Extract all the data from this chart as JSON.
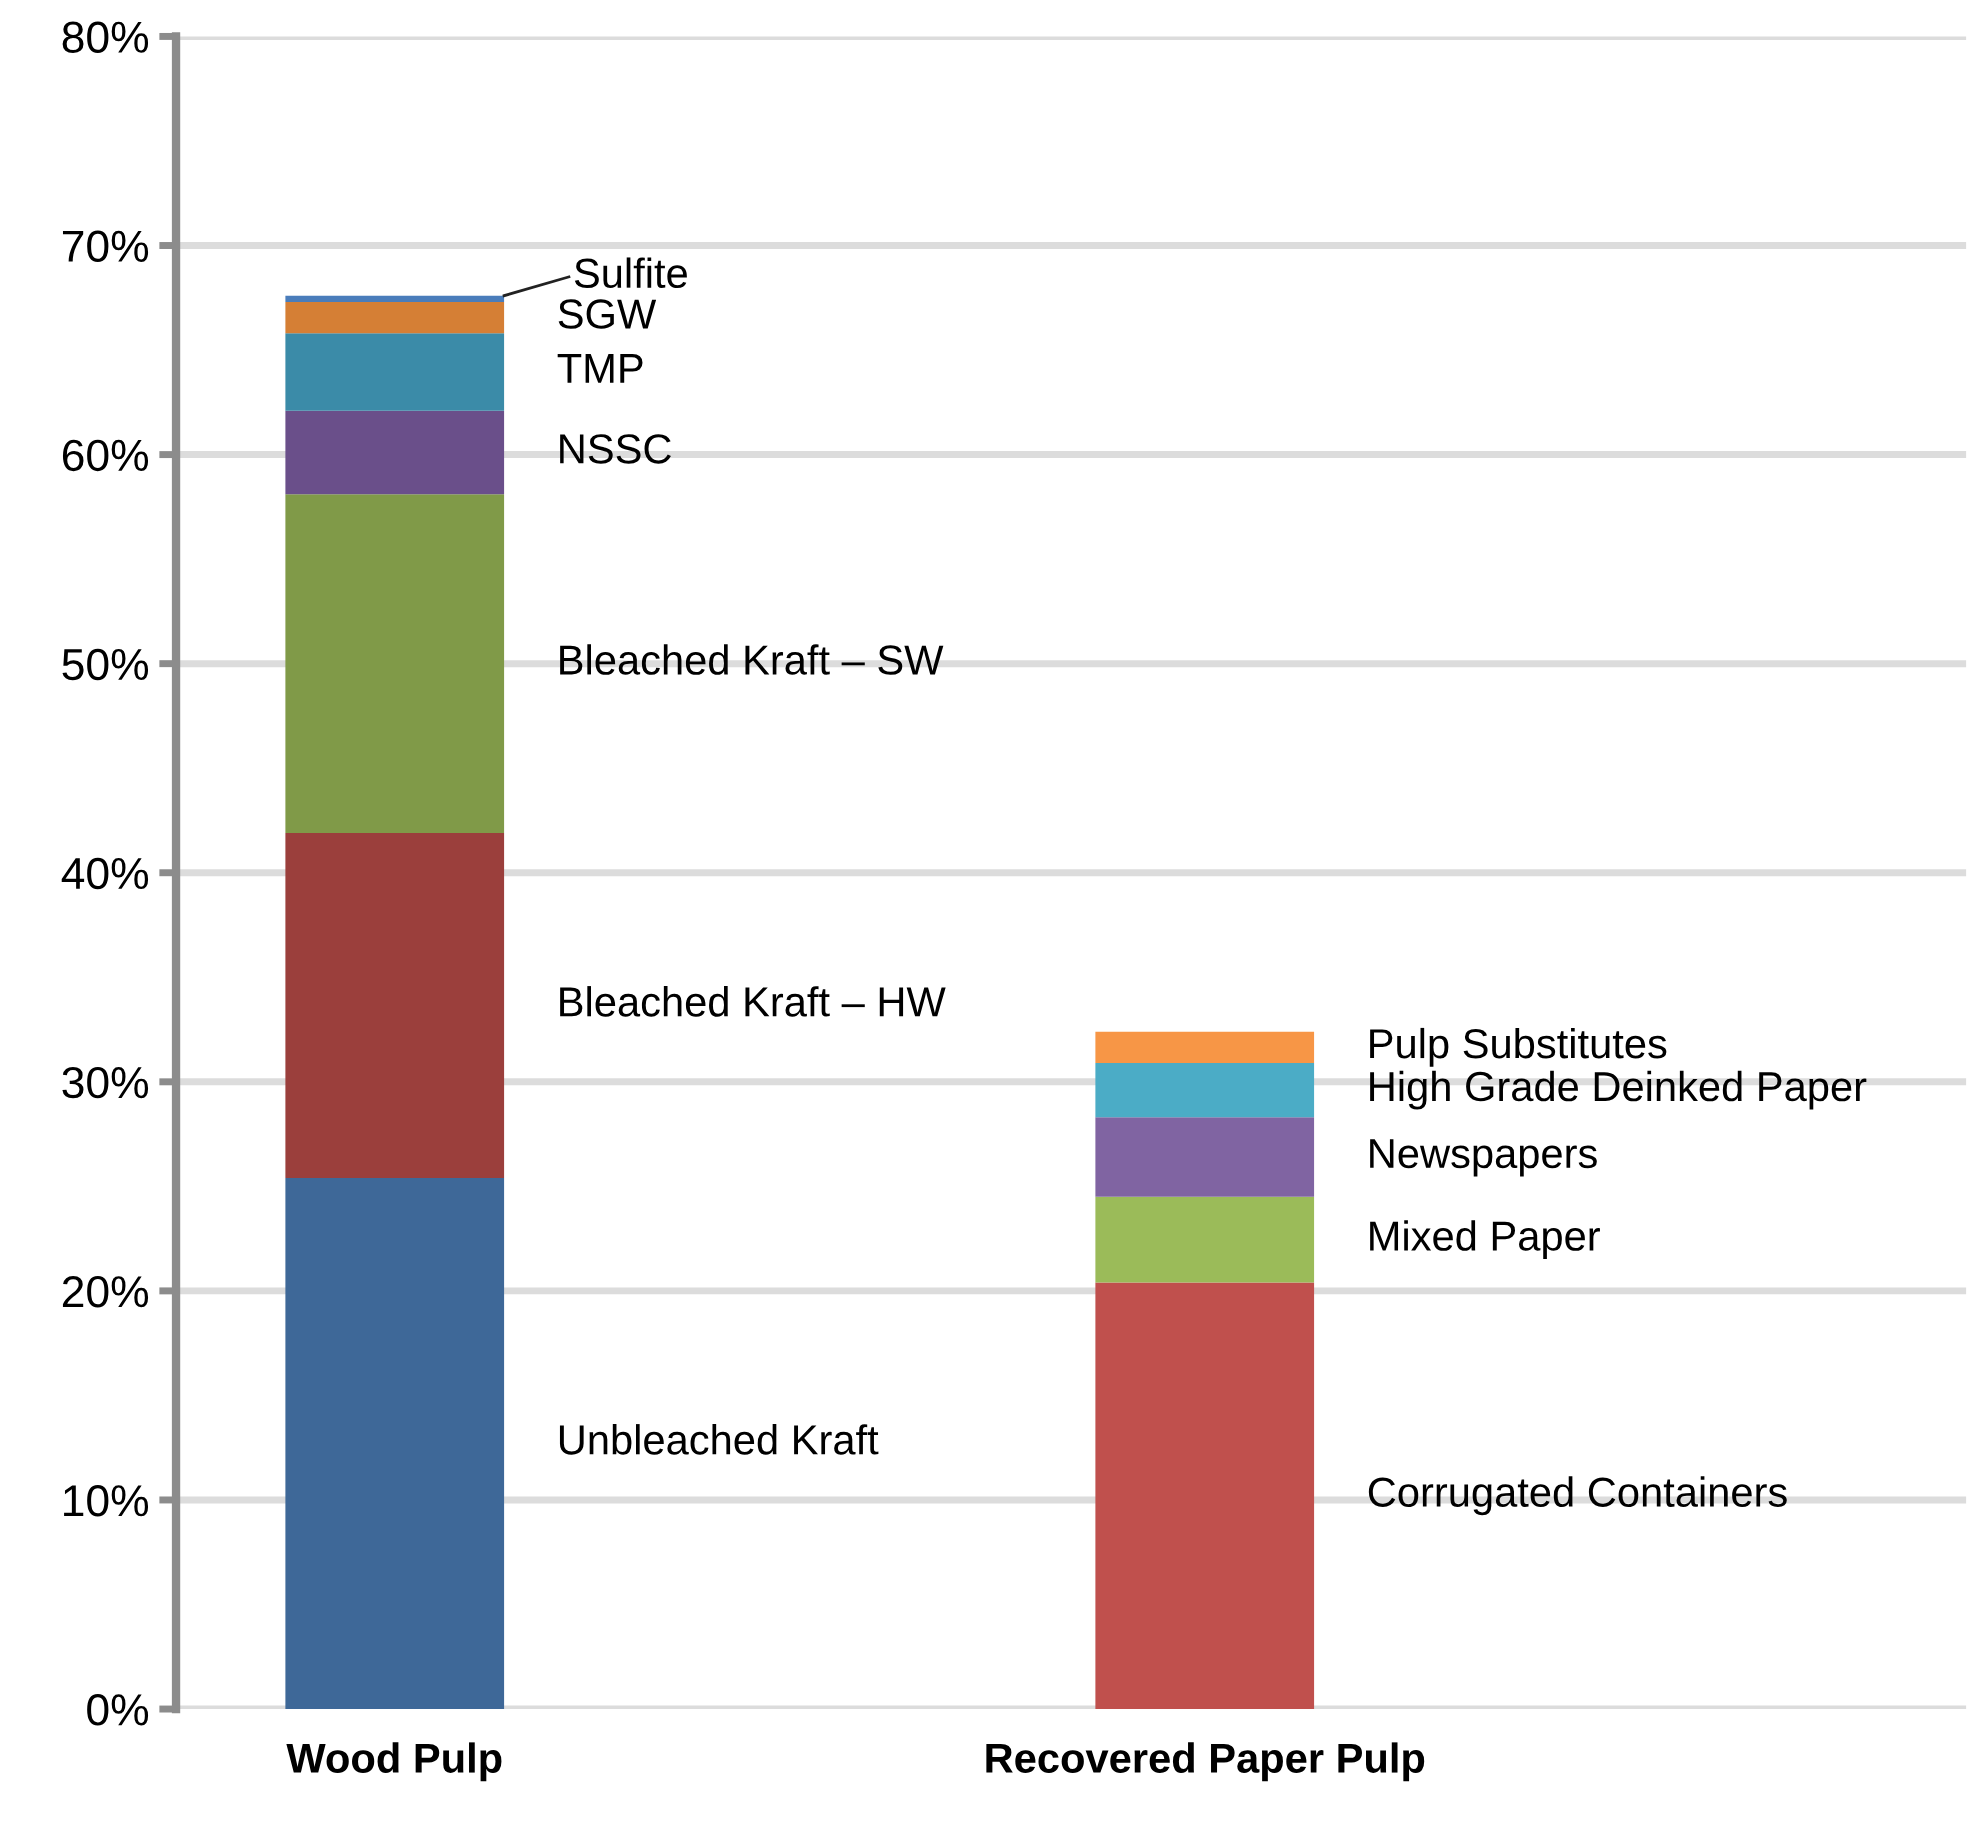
{
  "chart_data": {
    "type": "bar",
    "stacked": true,
    "categories": [
      "Wood Pulp",
      "Recovered Paper Pulp"
    ],
    "series": [
      {
        "name": "Unbleached Kraft",
        "color": "#3e6898",
        "values": [
          25.4,
          null
        ]
      },
      {
        "name": "Bleached Kraft – HW",
        "color": "#9b3f3c",
        "values": [
          16.5,
          null
        ]
      },
      {
        "name": "Bleached Kraft – SW",
        "color": "#809a48",
        "values": [
          16.2,
          null
        ]
      },
      {
        "name": "NSSC",
        "color": "#6a4f8a",
        "values": [
          4.0,
          null
        ]
      },
      {
        "name": "TMP",
        "color": "#3b8ba8",
        "values": [
          3.7,
          null
        ]
      },
      {
        "name": "SGW",
        "color": "#d57f35",
        "values": [
          1.5,
          null
        ]
      },
      {
        "name": "Sulfite",
        "color": "#4a7dbb",
        "values": [
          0.3,
          null
        ]
      },
      {
        "name": "Corrugated Containers",
        "color": "#c0504d",
        "values": [
          null,
          20.4
        ]
      },
      {
        "name": "Mixed Paper",
        "color": "#9bbb59",
        "values": [
          null,
          4.1
        ]
      },
      {
        "name": "Newspapers",
        "color": "#8064a2",
        "values": [
          null,
          3.8
        ]
      },
      {
        "name": "High Grade Deinked Paper",
        "color": "#4bacc6",
        "values": [
          null,
          2.6
        ]
      },
      {
        "name": "Pulp Substitutes",
        "color": "#f79646",
        "values": [
          null,
          1.5
        ]
      }
    ],
    "ylim": [
      0,
      80
    ],
    "yticks": [
      {
        "value": 0,
        "label": "0%"
      },
      {
        "value": 10,
        "label": "10%"
      },
      {
        "value": 20,
        "label": "20%"
      },
      {
        "value": 30,
        "label": "30%"
      },
      {
        "value": 40,
        "label": "40%"
      },
      {
        "value": 50,
        "label": "50%"
      },
      {
        "value": 60,
        "label": "60%"
      },
      {
        "value": 70,
        "label": "70%"
      },
      {
        "value": 80,
        "label": "80%"
      }
    ],
    "grid": "y",
    "legend": false
  }
}
